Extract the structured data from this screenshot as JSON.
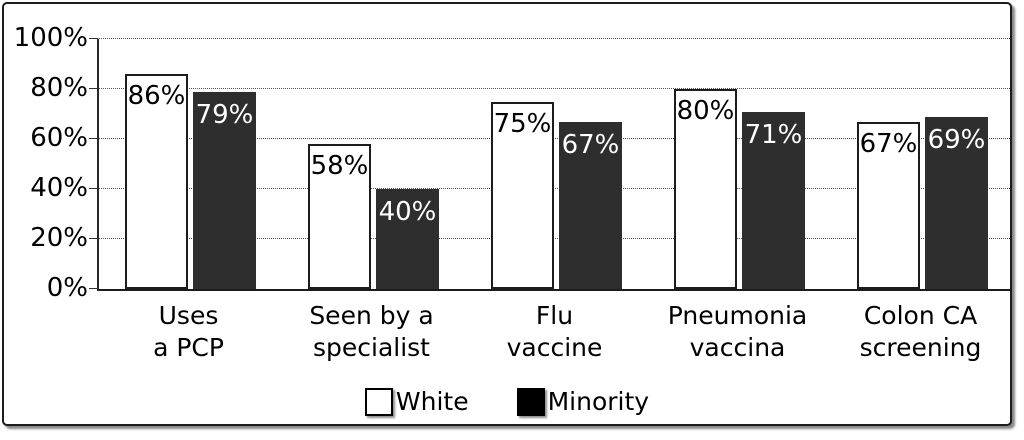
{
  "chart_data": {
    "type": "bar",
    "title": "",
    "categories": [
      "Uses a PCP",
      "Seen by a specialist",
      "Flu vaccine",
      "Pneumonia vaccina",
      "Colon CA screening"
    ],
    "categories_lines": [
      [
        "Uses",
        "a PCP"
      ],
      [
        "Seen by a",
        "specialist"
      ],
      [
        "Flu",
        "vaccine"
      ],
      [
        "Pneumonia",
        "vaccina"
      ],
      [
        "Colon CA",
        "screening"
      ]
    ],
    "series": [
      {
        "name": "White",
        "values": [
          86,
          58,
          75,
          80,
          67
        ],
        "color": "#ffffff",
        "label_color": "#000000"
      },
      {
        "name": "Minority",
        "values": [
          79,
          40,
          67,
          71,
          69
        ],
        "color": "#2e2e2e",
        "label_color": "#ffffff"
      }
    ],
    "bar_labels": [
      "86%",
      "79%",
      "58%",
      "40%",
      "75%",
      "67%",
      "80%",
      "71%",
      "67%",
      "69%"
    ],
    "value_suffix": "%",
    "ylim": [
      0,
      100
    ],
    "ytick_step": 20,
    "yticks": [
      "0%",
      "20%",
      "40%",
      "60%",
      "80%",
      "100%"
    ],
    "grid": "horizontal-dotted",
    "legend_position": "bottom"
  },
  "colors": {
    "frame_border": "#1c1c1c",
    "axis": "#2a2a2a",
    "gridline": "#555555",
    "bar_border": "#1c1c1c",
    "white_bar": "#ffffff",
    "minority_bar": "#2e2e2e"
  }
}
